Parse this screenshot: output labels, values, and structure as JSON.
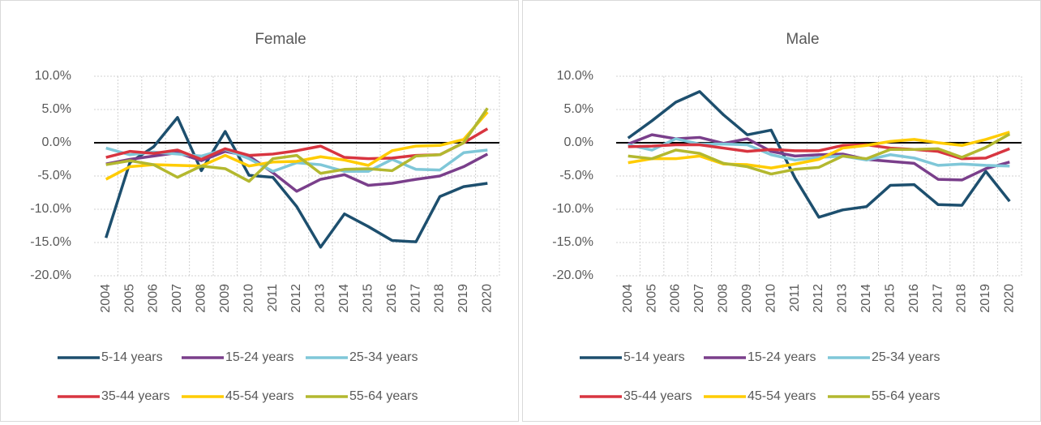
{
  "chart_data": [
    {
      "type": "line",
      "title": "Female",
      "categories": [
        "2004",
        "2005",
        "2006",
        "2007",
        "2008",
        "2009",
        "2010",
        "2011",
        "2012",
        "2013",
        "2014",
        "2015",
        "2016",
        "2017",
        "2018",
        "2019",
        "2020"
      ],
      "ylim": [
        -20,
        10
      ],
      "yticks": [
        {
          "value": -20,
          "label": "-20.0%"
        },
        {
          "value": -15,
          "label": "-15.0%"
        },
        {
          "value": -10,
          "label": "-10.0%"
        },
        {
          "value": -5,
          "label": "-5.0%"
        },
        {
          "value": 0,
          "label": "0.0%"
        },
        {
          "value": 5,
          "label": "5.0%"
        },
        {
          "value": 10,
          "label": "10.0%"
        }
      ],
      "grid": true,
      "series": [
        {
          "name": "5-14 years",
          "color": "#1d4f6e",
          "values": [
            -14.3,
            -3.0,
            -0.6,
            3.8,
            -4.2,
            1.7,
            -4.9,
            -5.2,
            -9.6,
            -15.7,
            -10.7,
            -12.6,
            -14.7,
            -14.9,
            -8.1,
            -6.6,
            -6.1
          ]
        },
        {
          "name": "15-24 years",
          "color": "#7a3f8b",
          "values": [
            -3.2,
            -2.5,
            -2.0,
            -1.5,
            -2.7,
            -1.3,
            -2.0,
            -4.5,
            -7.3,
            -5.5,
            -4.8,
            -6.4,
            -6.1,
            -5.5,
            -5.0,
            -3.6,
            -1.7
          ]
        },
        {
          "name": "25-34 years",
          "color": "#7fc7d8",
          "values": [
            -0.8,
            -1.8,
            -1.4,
            -1.7,
            -2.0,
            -1.0,
            -2.4,
            -4.3,
            -3.0,
            -3.3,
            -4.3,
            -4.3,
            -2.5,
            -4.0,
            -4.1,
            -1.5,
            -1.1
          ]
        },
        {
          "name": "35-44 years",
          "color": "#d83540",
          "values": [
            -2.2,
            -1.3,
            -1.6,
            -1.1,
            -2.5,
            -0.9,
            -1.9,
            -1.7,
            -1.2,
            -0.5,
            -2.2,
            -2.4,
            -2.3,
            -1.9,
            -1.8,
            0.0,
            2.1
          ]
        },
        {
          "name": "45-54 years",
          "color": "#ffcc00",
          "values": [
            -5.5,
            -3.6,
            -3.3,
            -3.4,
            -3.5,
            -1.9,
            -3.5,
            -2.9,
            -2.8,
            -2.1,
            -2.6,
            -3.4,
            -1.2,
            -0.5,
            -0.4,
            0.5,
            4.6
          ]
        },
        {
          "name": "55-64 years",
          "color": "#b3b82f",
          "values": [
            -3.3,
            -2.7,
            -3.3,
            -5.2,
            -3.5,
            -3.9,
            -5.8,
            -2.4,
            -1.9,
            -4.6,
            -4.0,
            -3.9,
            -4.2,
            -2.0,
            -1.8,
            0.0,
            5.2
          ]
        }
      ]
    },
    {
      "type": "line",
      "title": "Male",
      "categories": [
        "2004",
        "2005",
        "2006",
        "2007",
        "2008",
        "2009",
        "2010",
        "2011",
        "2012",
        "2013",
        "2014",
        "2015",
        "2016",
        "2017",
        "2018",
        "2019",
        "2020"
      ],
      "ylim": [
        -20,
        10
      ],
      "yticks": [
        {
          "value": -20,
          "label": "-20.0%"
        },
        {
          "value": -15,
          "label": "-15.0%"
        },
        {
          "value": -10,
          "label": "-10.0%"
        },
        {
          "value": -5,
          "label": "-5.0%"
        },
        {
          "value": 0,
          "label": "0.0%"
        },
        {
          "value": 5,
          "label": "5.0%"
        },
        {
          "value": 10,
          "label": "10.0%"
        }
      ],
      "grid": true,
      "series": [
        {
          "name": "5-14 years",
          "color": "#1d4f6e",
          "values": [
            0.7,
            3.3,
            6.1,
            7.7,
            4.2,
            1.2,
            1.9,
            -5.3,
            -11.2,
            -10.1,
            -9.6,
            -6.4,
            -6.3,
            -9.3,
            -9.4,
            -4.3,
            -8.8
          ]
        },
        {
          "name": "15-24 years",
          "color": "#7a3f8b",
          "values": [
            -0.2,
            1.2,
            0.6,
            0.8,
            -0.1,
            0.6,
            -1.3,
            -2.0,
            -1.8,
            -1.7,
            -2.5,
            -2.8,
            -3.1,
            -5.5,
            -5.6,
            -3.9,
            -2.9
          ]
        },
        {
          "name": "25-34 years",
          "color": "#7fc7d8",
          "values": [
            -0.3,
            -1.1,
            0.6,
            -0.2,
            -0.2,
            -0.3,
            -1.8,
            -2.6,
            -2.2,
            -2.0,
            -2.6,
            -1.8,
            -2.3,
            -3.4,
            -3.2,
            -3.4,
            -3.5
          ]
        },
        {
          "name": "35-44 years",
          "color": "#d83540",
          "values": [
            -0.6,
            -0.5,
            -0.3,
            -0.3,
            -0.8,
            -1.3,
            -1.0,
            -1.2,
            -1.2,
            -0.4,
            -0.3,
            -0.8,
            -1.0,
            -1.3,
            -2.4,
            -2.3,
            -0.9
          ]
        },
        {
          "name": "45-54 years",
          "color": "#ffcc00",
          "values": [
            -3.0,
            -2.4,
            -2.4,
            -2.0,
            -3.2,
            -3.3,
            -3.8,
            -3.2,
            -2.5,
            -0.8,
            -0.4,
            0.2,
            0.5,
            0.0,
            -0.4,
            0.5,
            1.6
          ]
        },
        {
          "name": "55-64 years",
          "color": "#b3b82f",
          "values": [
            -2.0,
            -2.4,
            -1.1,
            -1.6,
            -3.1,
            -3.6,
            -4.7,
            -4.0,
            -3.7,
            -2.0,
            -2.4,
            -1.0,
            -1.0,
            -0.9,
            -2.2,
            -0.7,
            1.3
          ]
        }
      ]
    }
  ]
}
